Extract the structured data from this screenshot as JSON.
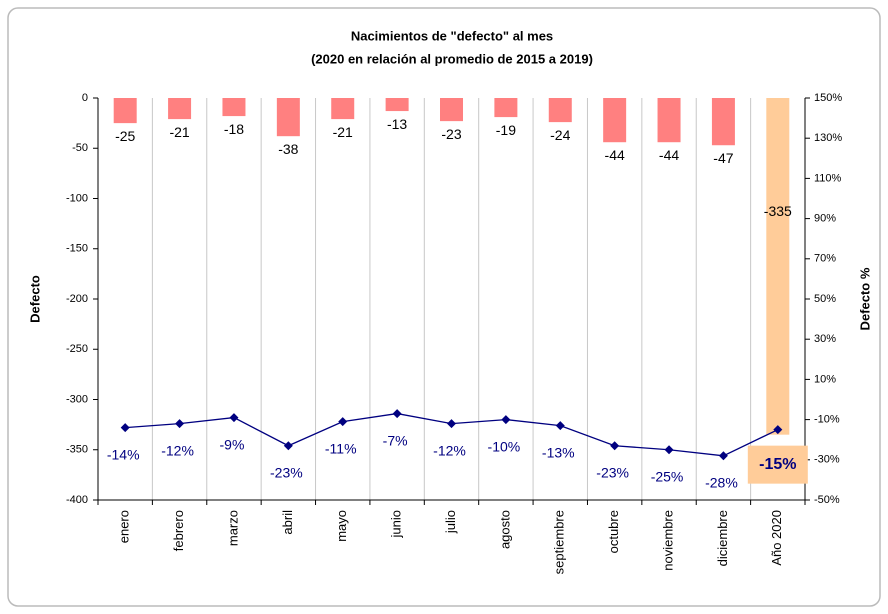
{
  "chart_data": {
    "type": "bar_line",
    "title": "Nacimientos de \"defecto\" al mes",
    "subtitle": "(2020 en relación al promedio de 2015 a 2019)",
    "y_label": "Defecto",
    "y2_label": "Defecto %",
    "categories": [
      "enero",
      "febrero",
      "marzo",
      "abril",
      "mayo",
      "junio",
      "julio",
      "agosto",
      "septiembre",
      "octubre",
      "noviembre",
      "diciembre",
      "Año 2020"
    ],
    "series": [
      {
        "name": "Defecto",
        "type": "bar",
        "color": "#ff8080",
        "highlight_color": "#ffcc99",
        "values": [
          -25,
          -21,
          -18,
          -38,
          -21,
          -13,
          -23,
          -19,
          -24,
          -44,
          -44,
          -47,
          -335
        ]
      },
      {
        "name": "Defecto %",
        "type": "line",
        "axis": "y2",
        "color": "#000080",
        "values": [
          -14,
          -12,
          -9,
          -23,
          -11,
          -7,
          -12,
          -10,
          -13,
          -23,
          -25,
          -28,
          -15
        ],
        "value_labels": [
          "-14%",
          "-12%",
          "-9%",
          "-23%",
          "-11%",
          "-7%",
          "-12%",
          "-10%",
          "-13%",
          "-23%",
          "-25%",
          "-28%",
          "-15%"
        ]
      }
    ],
    "ylim": [
      -400,
      0
    ],
    "yticks": [
      0,
      -50,
      -100,
      -150,
      -200,
      -250,
      -300,
      -350,
      -400
    ],
    "y2lim": [
      -50,
      150
    ],
    "y2ticks": [
      {
        "value": 150,
        "label": "150%"
      },
      {
        "value": 130,
        "label": "130%"
      },
      {
        "value": 110,
        "label": "110%"
      },
      {
        "value": 90,
        "label": "90%"
      },
      {
        "value": 70,
        "label": "70%"
      },
      {
        "value": 50,
        "label": "50%"
      },
      {
        "value": 30,
        "label": "30%"
      },
      {
        "value": 10,
        "label": "10%"
      },
      {
        "value": -10,
        "label": "-10%"
      },
      {
        "value": -30,
        "label": "-30%"
      },
      {
        "value": -50,
        "label": "-50%"
      }
    ],
    "grid": "x"
  }
}
